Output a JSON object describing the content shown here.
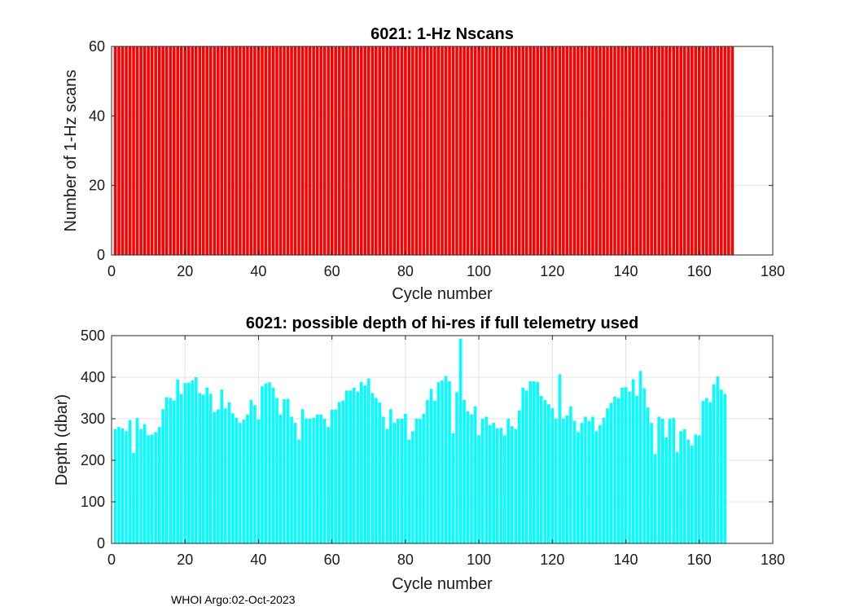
{
  "chart_data": [
    {
      "type": "bar",
      "title": "6021: 1-Hz Nscans",
      "xlabel": "Cycle number",
      "ylabel": "Number of 1-Hz scans",
      "xlim": [
        0,
        180
      ],
      "ylim": [
        0,
        60
      ],
      "xticks": [
        0,
        20,
        40,
        60,
        80,
        100,
        120,
        140,
        160,
        180
      ],
      "yticks": [
        0,
        20,
        40,
        60
      ],
      "grid": true,
      "color": "#ff0000",
      "x_start": 1,
      "values": [
        60,
        60,
        60,
        60,
        60,
        60,
        60,
        60,
        60,
        60,
        60,
        60,
        60,
        60,
        60,
        60,
        60,
        60,
        60,
        60,
        60,
        60,
        60,
        60,
        60,
        60,
        60,
        60,
        60,
        60,
        60,
        60,
        60,
        60,
        60,
        60,
        60,
        60,
        60,
        60,
        60,
        60,
        60,
        60,
        60,
        60,
        60,
        60,
        60,
        60,
        60,
        60,
        60,
        60,
        60,
        60,
        60,
        60,
        60,
        60,
        60,
        60,
        60,
        60,
        60,
        60,
        60,
        60,
        60,
        60,
        60,
        60,
        60,
        60,
        60,
        60,
        60,
        60,
        60,
        60,
        60,
        60,
        60,
        60,
        60,
        60,
        60,
        60,
        60,
        60,
        60,
        60,
        60,
        60,
        60,
        60,
        60,
        60,
        60,
        60,
        60,
        60,
        60,
        60,
        60,
        60,
        60,
        60,
        60,
        60,
        60,
        60,
        60,
        60,
        60,
        60,
        60,
        60,
        60,
        60,
        60,
        60,
        60,
        60,
        60,
        60,
        60,
        60,
        60,
        60,
        60,
        60,
        60,
        60,
        60,
        60,
        60,
        60,
        60,
        60,
        60,
        60,
        60,
        60,
        60,
        60,
        60,
        60,
        60,
        60,
        60,
        60,
        60,
        60,
        60,
        60,
        60,
        60,
        60,
        60,
        60,
        60,
        60,
        60,
        60,
        60,
        60,
        60,
        60
      ]
    },
    {
      "type": "bar",
      "title": "6021: possible depth of hi-res if full telemetry used",
      "xlabel": "Cycle number",
      "ylabel": "Depth (dbar)",
      "xlim": [
        0,
        180
      ],
      "ylim": [
        0,
        500
      ],
      "xticks": [
        0,
        20,
        40,
        60,
        80,
        100,
        120,
        140,
        160,
        180
      ],
      "yticks": [
        0,
        100,
        200,
        300,
        400,
        500
      ],
      "grid": true,
      "color": "#00ffff",
      "x_start": 1,
      "values": [
        275,
        280,
        277,
        270,
        297,
        218,
        302,
        275,
        287,
        260,
        262,
        268,
        280,
        323,
        352,
        350,
        344,
        394,
        360,
        386,
        387,
        392,
        400,
        362,
        358,
        375,
        360,
        316,
        322,
        370,
        325,
        340,
        313,
        302,
        290,
        298,
        310,
        345,
        333,
        298,
        378,
        385,
        388,
        375,
        350,
        310,
        347,
        348,
        305,
        290,
        250,
        323,
        300,
        300,
        302,
        310,
        310,
        300,
        280,
        322,
        322,
        340,
        344,
        368,
        368,
        375,
        365,
        388,
        380,
        397,
        362,
        350,
        339,
        305,
        275,
        323,
        290,
        300,
        300,
        312,
        250,
        270,
        300,
        300,
        312,
        345,
        372,
        343,
        388,
        392,
        403,
        390,
        265,
        364,
        493,
        345,
        318,
        310,
        330,
        260,
        300,
        305,
        285,
        290,
        277,
        278,
        260,
        300,
        282,
        275,
        320,
        375,
        368,
        390,
        390,
        388,
        355,
        345,
        335,
        325,
        300,
        407,
        300,
        308,
        330,
        295,
        268,
        290,
        305,
        295,
        305,
        270,
        285,
        302,
        325,
        338,
        353,
        350,
        375,
        376,
        365,
        395,
        355,
        415,
        373,
        327,
        290,
        215,
        305,
        300,
        255,
        300,
        302,
        220,
        270,
        275,
        250,
        235,
        262,
        260,
        343,
        350,
        340,
        383,
        402,
        370,
        360
      ]
    }
  ],
  "footer": {
    "text": "WHOI Argo:02-Oct-2023"
  }
}
